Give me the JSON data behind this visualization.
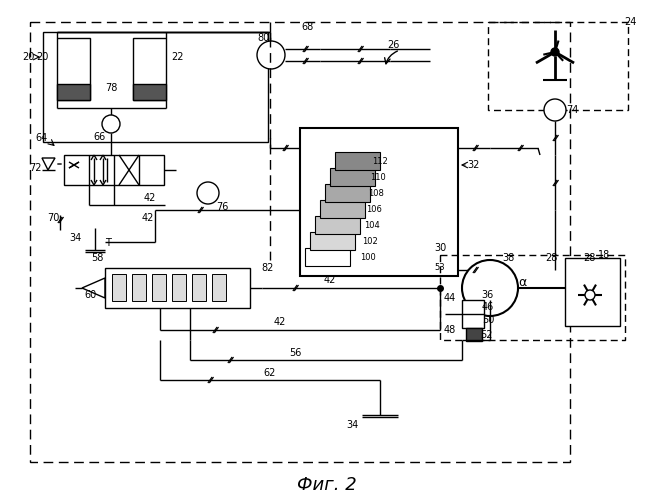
{
  "title": "Фиг. 2",
  "title_fontsize": 13,
  "bg_color": "#ffffff"
}
